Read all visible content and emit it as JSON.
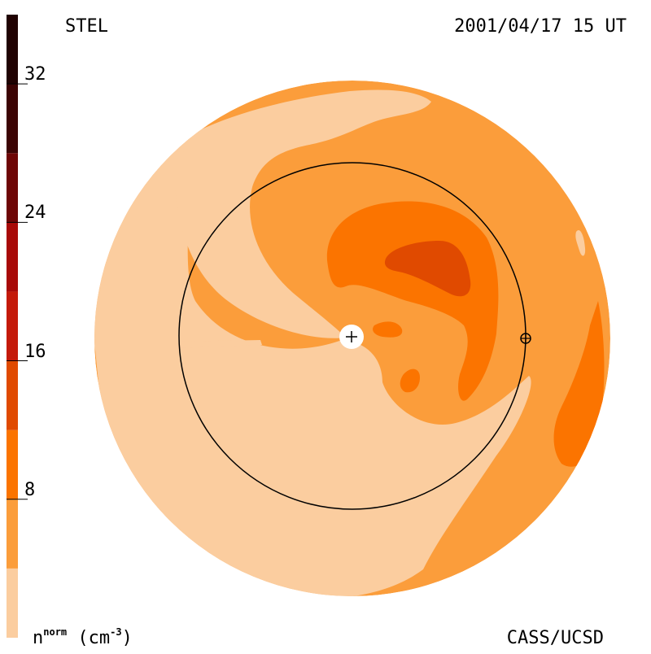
{
  "header": {
    "left_label": "STEL",
    "right_label": "2001/04/17 15 UT"
  },
  "footer": {
    "unit_base": "n",
    "unit_sup": "norm",
    "unit_suffix": " (cm",
    "unit_exp": "-3",
    "unit_close": ")",
    "credit": "CASS/UCSD"
  },
  "colors": {
    "level_0": "#fbcd9f",
    "level_1": "#fb9d3b",
    "level_2": "#fb7400",
    "level_3": "#e04a00",
    "level_4": "#c41a0a",
    "level_5": "#a80a08",
    "level_6": "#6e0606",
    "level_7": "#3c0404",
    "level_8": "#200202",
    "orbit": "#000000"
  },
  "chart_data": {
    "type": "heatmap",
    "colorbar": {
      "levels": [
        0,
        4,
        8,
        12,
        16,
        20,
        24,
        28,
        32,
        36
      ],
      "ticks": [
        {
          "value": 8,
          "label": "8"
        },
        {
          "value": 16,
          "label": "16"
        },
        {
          "value": 24,
          "label": "24"
        },
        {
          "value": 32,
          "label": "32"
        }
      ],
      "range": [
        0,
        36
      ]
    },
    "markers": [
      {
        "name": "sun",
        "symbol": "+"
      },
      {
        "name": "earth",
        "symbol": "⊕"
      }
    ]
  }
}
